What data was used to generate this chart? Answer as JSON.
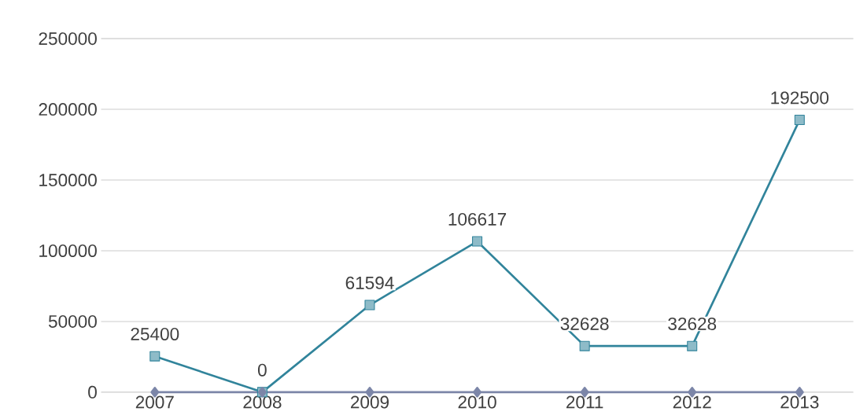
{
  "chart_data": {
    "type": "line",
    "categories": [
      "2007",
      "2008",
      "2009",
      "2010",
      "2011",
      "2012",
      "2013"
    ],
    "series": [
      {
        "color": "#31849b",
        "values": [
          25400,
          0,
          61594,
          106617,
          32628,
          32628,
          192500
        ],
        "marker": "square",
        "data_labels": true
      },
      {
        "color": "#7c86a8",
        "values": [
          0,
          0,
          0,
          0,
          0,
          0,
          0
        ],
        "marker": "diamond"
      }
    ],
    "ylim": [
      0,
      250000
    ],
    "yticks": [
      0,
      50000,
      100000,
      150000,
      200000,
      250000
    ],
    "grid": "y"
  }
}
